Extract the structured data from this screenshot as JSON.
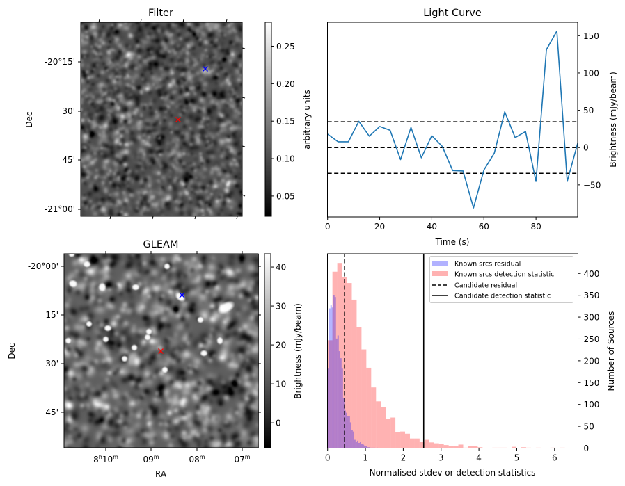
{
  "chart_data": [
    {
      "type": "heatmap",
      "panel": "filter",
      "title": "Filter",
      "xlabel": "",
      "ylabel": "Dec",
      "y_ticks": [
        "-20°15'",
        "30'",
        "45'",
        "-21°00'"
      ],
      "colorbar": {
        "label": "arbitrary units",
        "ticks": [
          "0.05",
          "0.10",
          "0.15",
          "0.20",
          "0.25"
        ],
        "range": [
          0.023,
          0.282
        ],
        "colormap": "gray"
      },
      "markers": [
        {
          "name": "known-source",
          "symbol": "x",
          "color": "#0000ff"
        },
        {
          "name": "candidate",
          "symbol": "x",
          "color": "#ff0000"
        }
      ]
    },
    {
      "type": "line",
      "panel": "light-curve",
      "title": "Light Curve",
      "xlabel": "Time (s)",
      "ylabel": "Brightness (mJy/beam)",
      "xlim": [
        0,
        96
      ],
      "ylim": [
        -93,
        168
      ],
      "x_ticks": [
        0,
        20,
        40,
        60,
        80
      ],
      "y_ticks": [
        -50,
        0,
        50,
        100,
        150
      ],
      "grid": false,
      "series": [
        {
          "name": "light curve",
          "color": "#1f77b4",
          "x": [
            0,
            4,
            8,
            12,
            16,
            20,
            24,
            28,
            32,
            36,
            40,
            44,
            48,
            52,
            56,
            60,
            64,
            68,
            72,
            76,
            80,
            84,
            88,
            92,
            96
          ],
          "y": [
            18.0,
            7.8,
            7.8,
            35.2,
            15.2,
            28.3,
            23.1,
            -16.1,
            27.1,
            -13.7,
            15.9,
            1.6,
            -30.8,
            -31.4,
            -80.9,
            -30.0,
            -7.5,
            47.9,
            13.4,
            21.5,
            -45.4,
            131.4,
            156.2,
            -45.4,
            5.6
          ]
        }
      ],
      "hlines": [
        {
          "name": "upper threshold",
          "y": 34.5,
          "style": "dashed",
          "color": "#000000"
        },
        {
          "name": "mean",
          "y": 0,
          "style": "dashed",
          "color": "#000000"
        },
        {
          "name": "lower threshold",
          "y": -34.5,
          "style": "dashed",
          "color": "#000000"
        }
      ]
    },
    {
      "type": "heatmap",
      "panel": "gleam",
      "title": "GLEAM",
      "xlabel": "RA",
      "ylabel": "Dec",
      "x_ticks": [
        {
          "major": "8",
          "major_unit": "h",
          "minor": "10",
          "minor_unit": "m"
        },
        {
          "major": "",
          "major_unit": "",
          "minor": "09",
          "minor_unit": "m"
        },
        {
          "major": "",
          "major_unit": "",
          "minor": "08",
          "minor_unit": "m"
        },
        {
          "major": "",
          "major_unit": "",
          "minor": "07",
          "minor_unit": "m"
        }
      ],
      "y_ticks": [
        "-20°00'",
        "15'",
        "30'",
        "45'"
      ],
      "colorbar": {
        "label": "Brightness (mJy/beam)",
        "ticks": [
          "0",
          "10",
          "20",
          "30",
          "40"
        ],
        "range": [
          -6.4,
          43.4
        ],
        "colormap": "gray"
      },
      "markers": [
        {
          "name": "known-source",
          "symbol": "x",
          "color": "#0000ff"
        },
        {
          "name": "candidate",
          "symbol": "x",
          "color": "#ff0000"
        }
      ]
    },
    {
      "type": "bar",
      "panel": "histogram",
      "title": "",
      "xlabel": "Normalised stdev or detection statistics",
      "ylabel": "Number of Sources",
      "xlim": [
        0,
        6.62
      ],
      "ylim": [
        0,
        445
      ],
      "x_ticks": [
        0,
        1,
        2,
        3,
        4,
        5,
        6
      ],
      "y_ticks": [
        0,
        50,
        100,
        150,
        200,
        250,
        300,
        350,
        400
      ],
      "legend_position": "top-right",
      "series": [
        {
          "name": "Known srcs residual",
          "color": "#0000ff",
          "alpha": 0.3,
          "bin_start": 0.0,
          "bin_width": 0.037,
          "values": [
            182,
            320,
            327,
            322,
            351,
            346,
            251,
            258,
            222,
            206,
            182,
            115,
            86,
            81,
            74,
            74,
            59,
            41,
            38,
            19,
            14,
            17,
            12,
            15,
            9,
            8,
            6,
            4,
            2,
            2,
            1,
            1,
            1,
            1,
            0,
            1
          ]
        },
        {
          "name": "Known srcs detection statistic",
          "color": "#ff0000",
          "alpha": 0.3,
          "bin_start": 0.0,
          "bin_width": 0.128,
          "values": [
            247,
            404,
            424,
            391,
            378,
            340,
            277,
            226,
            184,
            139,
            107,
            94,
            67,
            70,
            36,
            38,
            33,
            22,
            22,
            14,
            19,
            13,
            11,
            10,
            7,
            4,
            4,
            8,
            1,
            4,
            5,
            2,
            0,
            0,
            1,
            1,
            1,
            0,
            3,
            0,
            2,
            1,
            0,
            1,
            0,
            0,
            1,
            0,
            1
          ]
        }
      ],
      "vlines": [
        {
          "name": "Candidate residual",
          "x": 0.45,
          "style": "dashed",
          "color": "#000000"
        },
        {
          "name": "Candidate detection statistic",
          "x": 2.54,
          "style": "solid",
          "color": "#000000"
        }
      ]
    }
  ]
}
